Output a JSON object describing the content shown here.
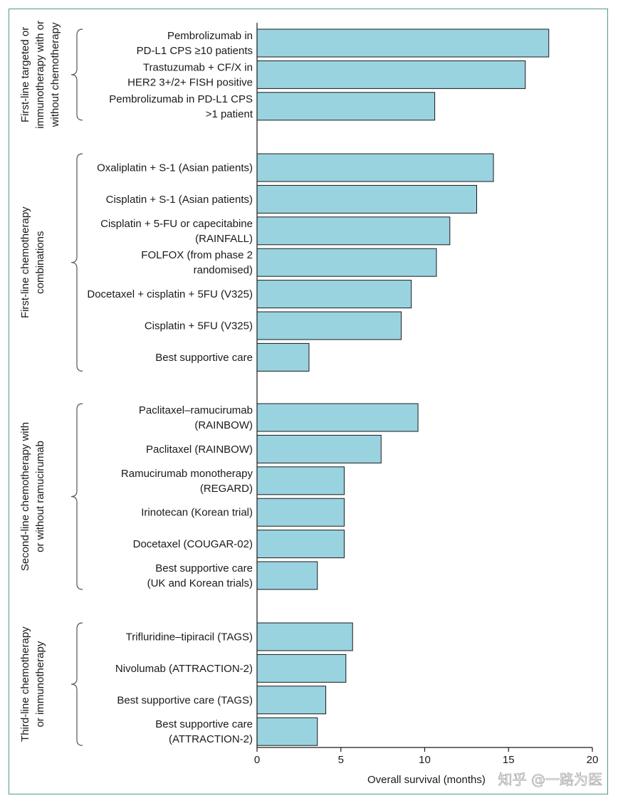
{
  "chart_data": {
    "type": "bar",
    "orientation": "horizontal",
    "xlabel": "Overall survival (months)",
    "xlim": [
      0,
      20
    ],
    "xticks": [
      0,
      5,
      10,
      15,
      20
    ],
    "bar_color": "#99d3e0",
    "bar_edge_color": "#1a1a1a",
    "frame_color": "#4f9a86",
    "groups": [
      {
        "label_lines": [
          "First-line targeted or",
          "immunotherapy with or",
          "without chemotherapy"
        ],
        "bars": [
          {
            "label_lines": [
              "Pembrolizumab in",
              "PD-L1 CPS ≥10 patients"
            ],
            "value": 17.4
          },
          {
            "label_lines": [
              "Trastuzumab + CF/X in",
              "HER2 3+/2+ FISH positive"
            ],
            "value": 16.0
          },
          {
            "label_lines": [
              "Pembrolizumab in PD-L1 CPS",
              ">1 patient"
            ],
            "value": 10.6
          }
        ]
      },
      {
        "label_lines": [
          "First-line chemotherapy",
          "combinations"
        ],
        "bars": [
          {
            "label_lines": [
              "Oxaliplatin + S-1 (Asian patients)"
            ],
            "value": 14.1
          },
          {
            "label_lines": [
              "Cisplatin + S-1 (Asian patients)"
            ],
            "value": 13.1
          },
          {
            "label_lines": [
              "Cisplatin + 5-FU or capecitabine",
              "(RAINFALL)"
            ],
            "value": 11.5
          },
          {
            "label_lines": [
              "FOLFOX (from phase 2",
              "randomised)"
            ],
            "value": 10.7
          },
          {
            "label_lines": [
              "Docetaxel + cisplatin + 5FU (V325)"
            ],
            "value": 9.2
          },
          {
            "label_lines": [
              "Cisplatin + 5FU (V325)"
            ],
            "value": 8.6
          },
          {
            "label_lines": [
              "Best supportive care"
            ],
            "value": 3.1
          }
        ]
      },
      {
        "label_lines": [
          "Second-line chemotherapy with",
          "or without ramucirumab"
        ],
        "bars": [
          {
            "label_lines": [
              "Paclitaxel–ramucirumab",
              "(RAINBOW)"
            ],
            "value": 9.6
          },
          {
            "label_lines": [
              "Paclitaxel (RAINBOW)"
            ],
            "value": 7.4
          },
          {
            "label_lines": [
              "Ramucirumab monotherapy",
              "(REGARD)"
            ],
            "value": 5.2
          },
          {
            "label_lines": [
              "Irinotecan (Korean trial)"
            ],
            "value": 5.2
          },
          {
            "label_lines": [
              "Docetaxel (COUGAR-02)"
            ],
            "value": 5.2
          },
          {
            "label_lines": [
              "Best supportive care",
              "(UK and Korean trials)"
            ],
            "value": 3.6
          }
        ]
      },
      {
        "label_lines": [
          "Third-line chemotherapy",
          "or immunotherapy"
        ],
        "bars": [
          {
            "label_lines": [
              "Trifluridine–tipiracil (TAGS)"
            ],
            "value": 5.7
          },
          {
            "label_lines": [
              "Nivolumab (ATTRACTION-2)"
            ],
            "value": 5.3
          },
          {
            "label_lines": [
              "Best supportive care (TAGS)"
            ],
            "value": 4.1
          },
          {
            "label_lines": [
              "Best supportive care",
              "(ATTRACTION-2)"
            ],
            "value": 3.6
          }
        ]
      }
    ]
  },
  "watermark": {
    "text": "知乎 @一路为医"
  }
}
